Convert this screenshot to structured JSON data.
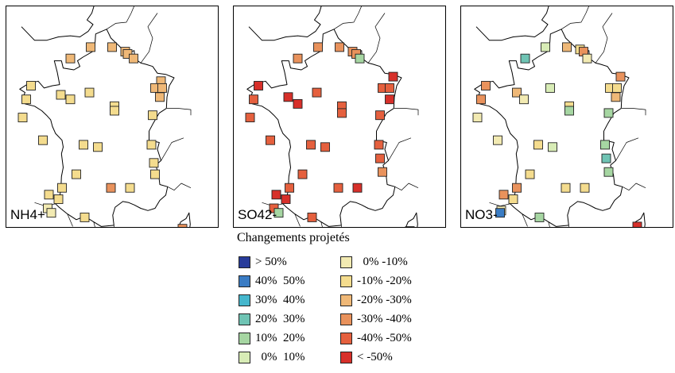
{
  "panels": [
    {
      "label": "NH4+",
      "stations": [
        {
          "lon": -0.5,
          "lat": 49.8,
          "cls": 8
        },
        {
          "lon": 1.2,
          "lat": 50.3,
          "cls": 8
        },
        {
          "lon": 3.0,
          "lat": 50.3,
          "cls": 8
        },
        {
          "lon": 4.1,
          "lat": 50.1,
          "cls": 8
        },
        {
          "lon": 4.3,
          "lat": 50.0,
          "cls": 8
        },
        {
          "lon": 4.8,
          "lat": 49.8,
          "cls": 8
        },
        {
          "lon": 7.1,
          "lat": 48.8,
          "cls": 8
        },
        {
          "lon": 6.6,
          "lat": 48.5,
          "cls": 8
        },
        {
          "lon": 7.2,
          "lat": 48.5,
          "cls": 8
        },
        {
          "lon": 7.0,
          "lat": 48.1,
          "cls": 8
        },
        {
          "lon": -3.8,
          "lat": 48.6,
          "cls": 7
        },
        {
          "lon": -4.2,
          "lat": 48.0,
          "cls": 7
        },
        {
          "lon": -1.3,
          "lat": 48.2,
          "cls": 7
        },
        {
          "lon": -0.5,
          "lat": 48.0,
          "cls": 7
        },
        {
          "lon": 1.1,
          "lat": 48.3,
          "cls": 7
        },
        {
          "lon": 3.2,
          "lat": 47.7,
          "cls": 7
        },
        {
          "lon": 3.2,
          "lat": 47.5,
          "cls": 7
        },
        {
          "lon": 6.4,
          "lat": 47.3,
          "cls": 7
        },
        {
          "lon": -4.5,
          "lat": 47.2,
          "cls": 7
        },
        {
          "lon": -2.8,
          "lat": 46.2,
          "cls": 7
        },
        {
          "lon": 0.6,
          "lat": 46.0,
          "cls": 7
        },
        {
          "lon": 1.8,
          "lat": 45.9,
          "cls": 7
        },
        {
          "lon": 6.3,
          "lat": 46.0,
          "cls": 7
        },
        {
          "lon": 6.5,
          "lat": 45.2,
          "cls": 7
        },
        {
          "lon": 6.6,
          "lat": 44.7,
          "cls": 7
        },
        {
          "lon": 0.0,
          "lat": 44.7,
          "cls": 7
        },
        {
          "lon": 2.9,
          "lat": 44.1,
          "cls": 9
        },
        {
          "lon": 4.5,
          "lat": 44.1,
          "cls": 7
        },
        {
          "lon": -1.2,
          "lat": 44.1,
          "cls": 7
        },
        {
          "lon": -2.3,
          "lat": 43.8,
          "cls": 7
        },
        {
          "lon": -1.5,
          "lat": 43.6,
          "cls": 7
        },
        {
          "lon": -2.4,
          "lat": 43.2,
          "cls": 6
        },
        {
          "lon": -2.1,
          "lat": 43.0,
          "cls": 6
        },
        {
          "lon": 0.7,
          "lat": 42.8,
          "cls": 7
        },
        {
          "lon": 8.9,
          "lat": 42.3,
          "cls": 9
        }
      ]
    },
    {
      "label": "SO42-",
      "stations": [
        {
          "lon": -0.5,
          "lat": 49.8,
          "cls": 9
        },
        {
          "lon": 1.2,
          "lat": 50.3,
          "cls": 9
        },
        {
          "lon": 3.0,
          "lat": 50.3,
          "cls": 9
        },
        {
          "lon": 4.1,
          "lat": 50.1,
          "cls": 9
        },
        {
          "lon": 4.4,
          "lat": 50.0,
          "cls": 9
        },
        {
          "lon": 4.7,
          "lat": 49.8,
          "cls": 4
        },
        {
          "lon": 7.5,
          "lat": 49.0,
          "cls": 11
        },
        {
          "lon": 6.6,
          "lat": 48.5,
          "cls": 10
        },
        {
          "lon": 7.2,
          "lat": 48.5,
          "cls": 10
        },
        {
          "lon": 7.2,
          "lat": 48.0,
          "cls": 11
        },
        {
          "lon": -3.8,
          "lat": 48.6,
          "cls": 11
        },
        {
          "lon": -4.2,
          "lat": 48.0,
          "cls": 10
        },
        {
          "lon": -1.3,
          "lat": 48.1,
          "cls": 11
        },
        {
          "lon": -0.5,
          "lat": 47.8,
          "cls": 11
        },
        {
          "lon": 1.1,
          "lat": 48.3,
          "cls": 10
        },
        {
          "lon": 3.2,
          "lat": 47.7,
          "cls": 10
        },
        {
          "lon": 3.2,
          "lat": 47.4,
          "cls": 10
        },
        {
          "lon": 6.4,
          "lat": 47.3,
          "cls": 10
        },
        {
          "lon": -4.5,
          "lat": 47.2,
          "cls": 10
        },
        {
          "lon": -2.8,
          "lat": 46.2,
          "cls": 10
        },
        {
          "lon": 0.6,
          "lat": 46.0,
          "cls": 10
        },
        {
          "lon": 1.8,
          "lat": 45.9,
          "cls": 10
        },
        {
          "lon": 6.3,
          "lat": 46.0,
          "cls": 10
        },
        {
          "lon": 6.4,
          "lat": 45.4,
          "cls": 10
        },
        {
          "lon": 6.6,
          "lat": 44.8,
          "cls": 9
        },
        {
          "lon": -0.1,
          "lat": 44.7,
          "cls": 10
        },
        {
          "lon": 2.9,
          "lat": 44.1,
          "cls": 10
        },
        {
          "lon": 4.5,
          "lat": 44.1,
          "cls": 11
        },
        {
          "lon": -1.2,
          "lat": 44.1,
          "cls": 10
        },
        {
          "lon": -2.3,
          "lat": 43.8,
          "cls": 11
        },
        {
          "lon": -1.5,
          "lat": 43.6,
          "cls": 11
        },
        {
          "lon": -2.5,
          "lat": 43.2,
          "cls": 10
        },
        {
          "lon": -2.1,
          "lat": 43.0,
          "cls": 4
        },
        {
          "lon": 0.7,
          "lat": 42.8,
          "cls": 10
        },
        {
          "lon": 8.9,
          "lat": 42.2,
          "cls": 11
        }
      ]
    },
    {
      "label": "NO3-",
      "stations": [
        {
          "lon": -0.5,
          "lat": 49.8,
          "cls": 3
        },
        {
          "lon": 1.2,
          "lat": 50.3,
          "cls": 5
        },
        {
          "lon": 3.0,
          "lat": 50.3,
          "cls": 8
        },
        {
          "lon": 4.1,
          "lat": 50.2,
          "cls": 7
        },
        {
          "lon": 4.4,
          "lat": 50.1,
          "cls": 9
        },
        {
          "lon": 4.7,
          "lat": 49.8,
          "cls": 6
        },
        {
          "lon": 7.5,
          "lat": 49.0,
          "cls": 9
        },
        {
          "lon": 6.6,
          "lat": 48.5,
          "cls": 7
        },
        {
          "lon": 7.2,
          "lat": 48.5,
          "cls": 7
        },
        {
          "lon": 7.1,
          "lat": 48.1,
          "cls": 8
        },
        {
          "lon": -3.8,
          "lat": 48.6,
          "cls": 9
        },
        {
          "lon": -4.2,
          "lat": 48.0,
          "cls": 9
        },
        {
          "lon": -1.2,
          "lat": 48.3,
          "cls": 8
        },
        {
          "lon": -0.6,
          "lat": 48.0,
          "cls": 6
        },
        {
          "lon": 1.6,
          "lat": 48.5,
          "cls": 5
        },
        {
          "lon": 3.2,
          "lat": 47.7,
          "cls": 7
        },
        {
          "lon": 3.2,
          "lat": 47.5,
          "cls": 4
        },
        {
          "lon": 6.5,
          "lat": 47.4,
          "cls": 4
        },
        {
          "lon": -4.5,
          "lat": 47.2,
          "cls": 6
        },
        {
          "lon": -2.8,
          "lat": 46.2,
          "cls": 6
        },
        {
          "lon": 0.6,
          "lat": 46.0,
          "cls": 7
        },
        {
          "lon": 1.8,
          "lat": 45.9,
          "cls": 5
        },
        {
          "lon": 6.2,
          "lat": 46.0,
          "cls": 4
        },
        {
          "lon": 6.3,
          "lat": 45.4,
          "cls": 3
        },
        {
          "lon": 6.5,
          "lat": 44.8,
          "cls": 4
        },
        {
          "lon": -0.1,
          "lat": 44.7,
          "cls": 7
        },
        {
          "lon": 2.9,
          "lat": 44.1,
          "cls": 7
        },
        {
          "lon": 4.5,
          "lat": 44.1,
          "cls": 7
        },
        {
          "lon": -1.2,
          "lat": 44.1,
          "cls": 9
        },
        {
          "lon": -2.3,
          "lat": 43.8,
          "cls": 9
        },
        {
          "lon": -1.5,
          "lat": 43.6,
          "cls": 7
        },
        {
          "lon": -2.5,
          "lat": 43.1,
          "cls": 6
        },
        {
          "lon": -2.6,
          "lat": 43.0,
          "cls": 1
        },
        {
          "lon": 0.7,
          "lat": 42.8,
          "cls": 4
        },
        {
          "lon": 8.9,
          "lat": 42.4,
          "cls": 11
        }
      ]
    }
  ],
  "legend": {
    "title": "Changements projetés",
    "items": [
      {
        "label": "> 50%",
        "color": "#283c9a"
      },
      {
        "label": "40%  50%",
        "color": "#3a7cc4"
      },
      {
        "label": "30%  40%",
        "color": "#45b7cd"
      },
      {
        "label": "20%  30%",
        "color": "#6fc4b4"
      },
      {
        "label": "10%  20%",
        "color": "#a6d6a2"
      },
      {
        "label": "  0%  10%",
        "color": "#d8ecb6"
      },
      {
        "label": "  0% -10%",
        "color": "#f2eab2"
      },
      {
        "label": "-10% -20%",
        "color": "#f4dc8e"
      },
      {
        "label": "-20% -30%",
        "color": "#efb877"
      },
      {
        "label": "-30% -40%",
        "color": "#e9925c"
      },
      {
        "label": "-40% -50%",
        "color": "#e5603e"
      },
      {
        "label": "< -50%",
        "color": "#d7302a"
      }
    ]
  }
}
